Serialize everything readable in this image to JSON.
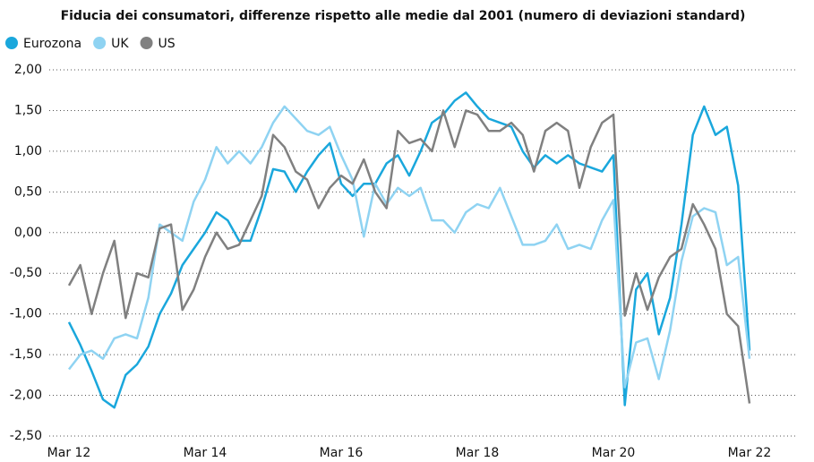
{
  "chart_data": {
    "type": "line",
    "title": "Fiducia dei consumatori, differenze rispetto alle medie dal 2001 (numero di deviazioni standard)",
    "categories": [
      "Mar 12",
      null,
      null,
      null,
      null,
      null,
      null,
      null,
      null,
      null,
      null,
      null,
      "Mar 14",
      null,
      null,
      null,
      null,
      null,
      null,
      null,
      null,
      null,
      null,
      null,
      "Mar 16",
      null,
      null,
      null,
      null,
      null,
      null,
      null,
      null,
      null,
      null,
      null,
      "Mar 18",
      null,
      null,
      null,
      null,
      null,
      null,
      null,
      null,
      null,
      null,
      null,
      "Mar 20",
      null,
      null,
      null,
      null,
      null,
      null,
      null,
      null,
      null,
      null,
      null,
      "Mar 22"
    ],
    "series": [
      {
        "name": "Eurozona",
        "color": "#1aa7dc",
        "values": [
          -1.1,
          -1.38,
          -1.7,
          -2.05,
          -2.15,
          -1.75,
          -1.62,
          -1.4,
          -1.0,
          -0.75,
          -0.4,
          -0.2,
          0.0,
          0.25,
          0.15,
          -0.1,
          -0.1,
          0.3,
          0.78,
          0.75,
          0.5,
          0.75,
          0.95,
          1.1,
          0.6,
          0.45,
          0.6,
          0.6,
          0.85,
          0.95,
          0.7,
          1.0,
          1.35,
          1.45,
          1.62,
          1.72,
          1.55,
          1.4,
          1.35,
          1.3,
          1.0,
          0.8,
          0.95,
          0.85,
          0.95,
          0.85,
          0.8,
          0.75,
          0.95,
          -2.12,
          -0.7,
          -0.5,
          -1.25,
          -0.8,
          0.1,
          1.2,
          1.55,
          1.2,
          1.3,
          0.58,
          -1.45
        ]
      },
      {
        "name": "UK",
        "color": "#8fd3f2",
        "values": [
          -1.68,
          -1.5,
          -1.45,
          -1.55,
          -1.3,
          -1.25,
          -1.3,
          -0.8,
          0.1,
          0.0,
          -0.1,
          0.38,
          0.65,
          1.05,
          0.85,
          1.0,
          0.85,
          1.05,
          1.35,
          1.55,
          1.4,
          1.25,
          1.2,
          1.3,
          0.95,
          0.65,
          -0.05,
          0.6,
          0.35,
          0.55,
          0.45,
          0.55,
          0.15,
          0.15,
          0.0,
          0.25,
          0.35,
          0.3,
          0.55,
          0.2,
          -0.15,
          -0.15,
          -0.1,
          0.1,
          -0.2,
          -0.15,
          -0.2,
          0.15,
          0.4,
          -1.9,
          -1.35,
          -1.3,
          -1.8,
          -1.2,
          -0.35,
          0.2,
          0.3,
          0.25,
          -0.4,
          -0.3,
          -1.55
        ]
      },
      {
        "name": "US",
        "color": "#808080",
        "values": [
          -0.65,
          -0.4,
          -1.0,
          -0.5,
          -0.1,
          -1.05,
          -0.5,
          -0.55,
          0.05,
          0.1,
          -0.95,
          -0.7,
          -0.3,
          0.0,
          -0.2,
          -0.15,
          0.15,
          0.45,
          1.2,
          1.05,
          0.75,
          0.65,
          0.3,
          0.55,
          0.7,
          0.6,
          0.9,
          0.5,
          0.3,
          1.25,
          1.1,
          1.15,
          1.0,
          1.5,
          1.05,
          1.5,
          1.45,
          1.25,
          1.25,
          1.35,
          1.2,
          0.75,
          1.25,
          1.35,
          1.25,
          0.55,
          1.05,
          1.35,
          1.45,
          -1.02,
          -0.5,
          -0.95,
          -0.55,
          -0.3,
          -0.2,
          0.35,
          0.1,
          -0.2,
          -1.0,
          -1.15,
          -2.1
        ]
      }
    ],
    "ylim": [
      -2.5,
      2.0
    ],
    "yticks": [
      {
        "value": 2.0,
        "label": "2,00"
      },
      {
        "value": 1.5,
        "label": "1,50"
      },
      {
        "value": 1.0,
        "label": "1,00"
      },
      {
        "value": 0.5,
        "label": "0,50"
      },
      {
        "value": 0.0,
        "label": "0,00"
      },
      {
        "value": -0.5,
        "label": "-0,50"
      },
      {
        "value": -1.0,
        "label": "-1,00"
      },
      {
        "value": -1.5,
        "label": "-1,50"
      },
      {
        "value": -2.0,
        "label": "-2,00"
      },
      {
        "value": -2.5,
        "label": "-2,50"
      }
    ],
    "grid": true,
    "legend": "top-left"
  }
}
